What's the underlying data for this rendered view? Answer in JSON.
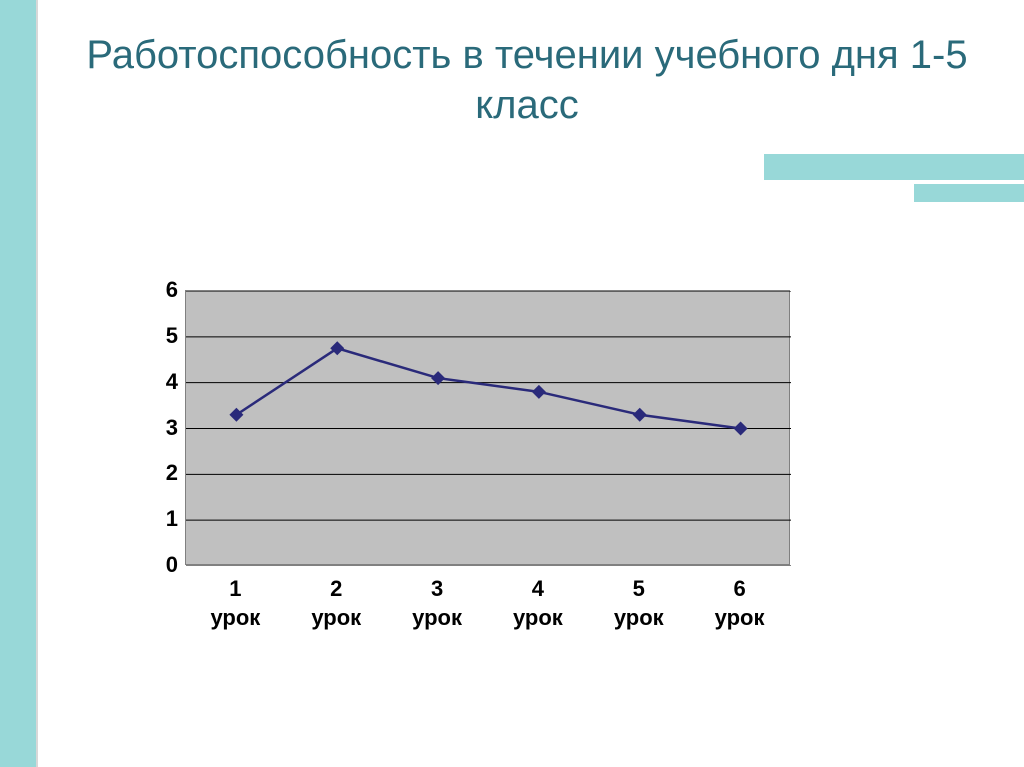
{
  "title": "Работоспособность в течении учебного дня 1-5 класс",
  "chart": {
    "type": "line",
    "categories": [
      "1 урок",
      "2 урок",
      "3 урок",
      "4 урок",
      "5 урок",
      "6 урок"
    ],
    "values": [
      3.3,
      4.75,
      4.1,
      3.8,
      3.3,
      3.0
    ],
    "yticks": [
      0,
      1,
      2,
      3,
      4,
      5,
      6
    ],
    "ylim": [
      0,
      6
    ],
    "line_color": "#2a2a7a",
    "marker_color": "#2a2a7a",
    "marker_style": "diamond",
    "marker_size": 14,
    "line_width": 2.5,
    "plot_bg": "#c0c0c0",
    "grid_color": "#000000",
    "border_color": "#808080",
    "label_fontsize": 22,
    "label_fontweight": "bold",
    "label_color": "#000000"
  },
  "theme": {
    "accent_color": "#98d8d8",
    "title_color": "#2a6a7a",
    "title_fontsize": 40,
    "slide_bg": "#ffffff"
  }
}
